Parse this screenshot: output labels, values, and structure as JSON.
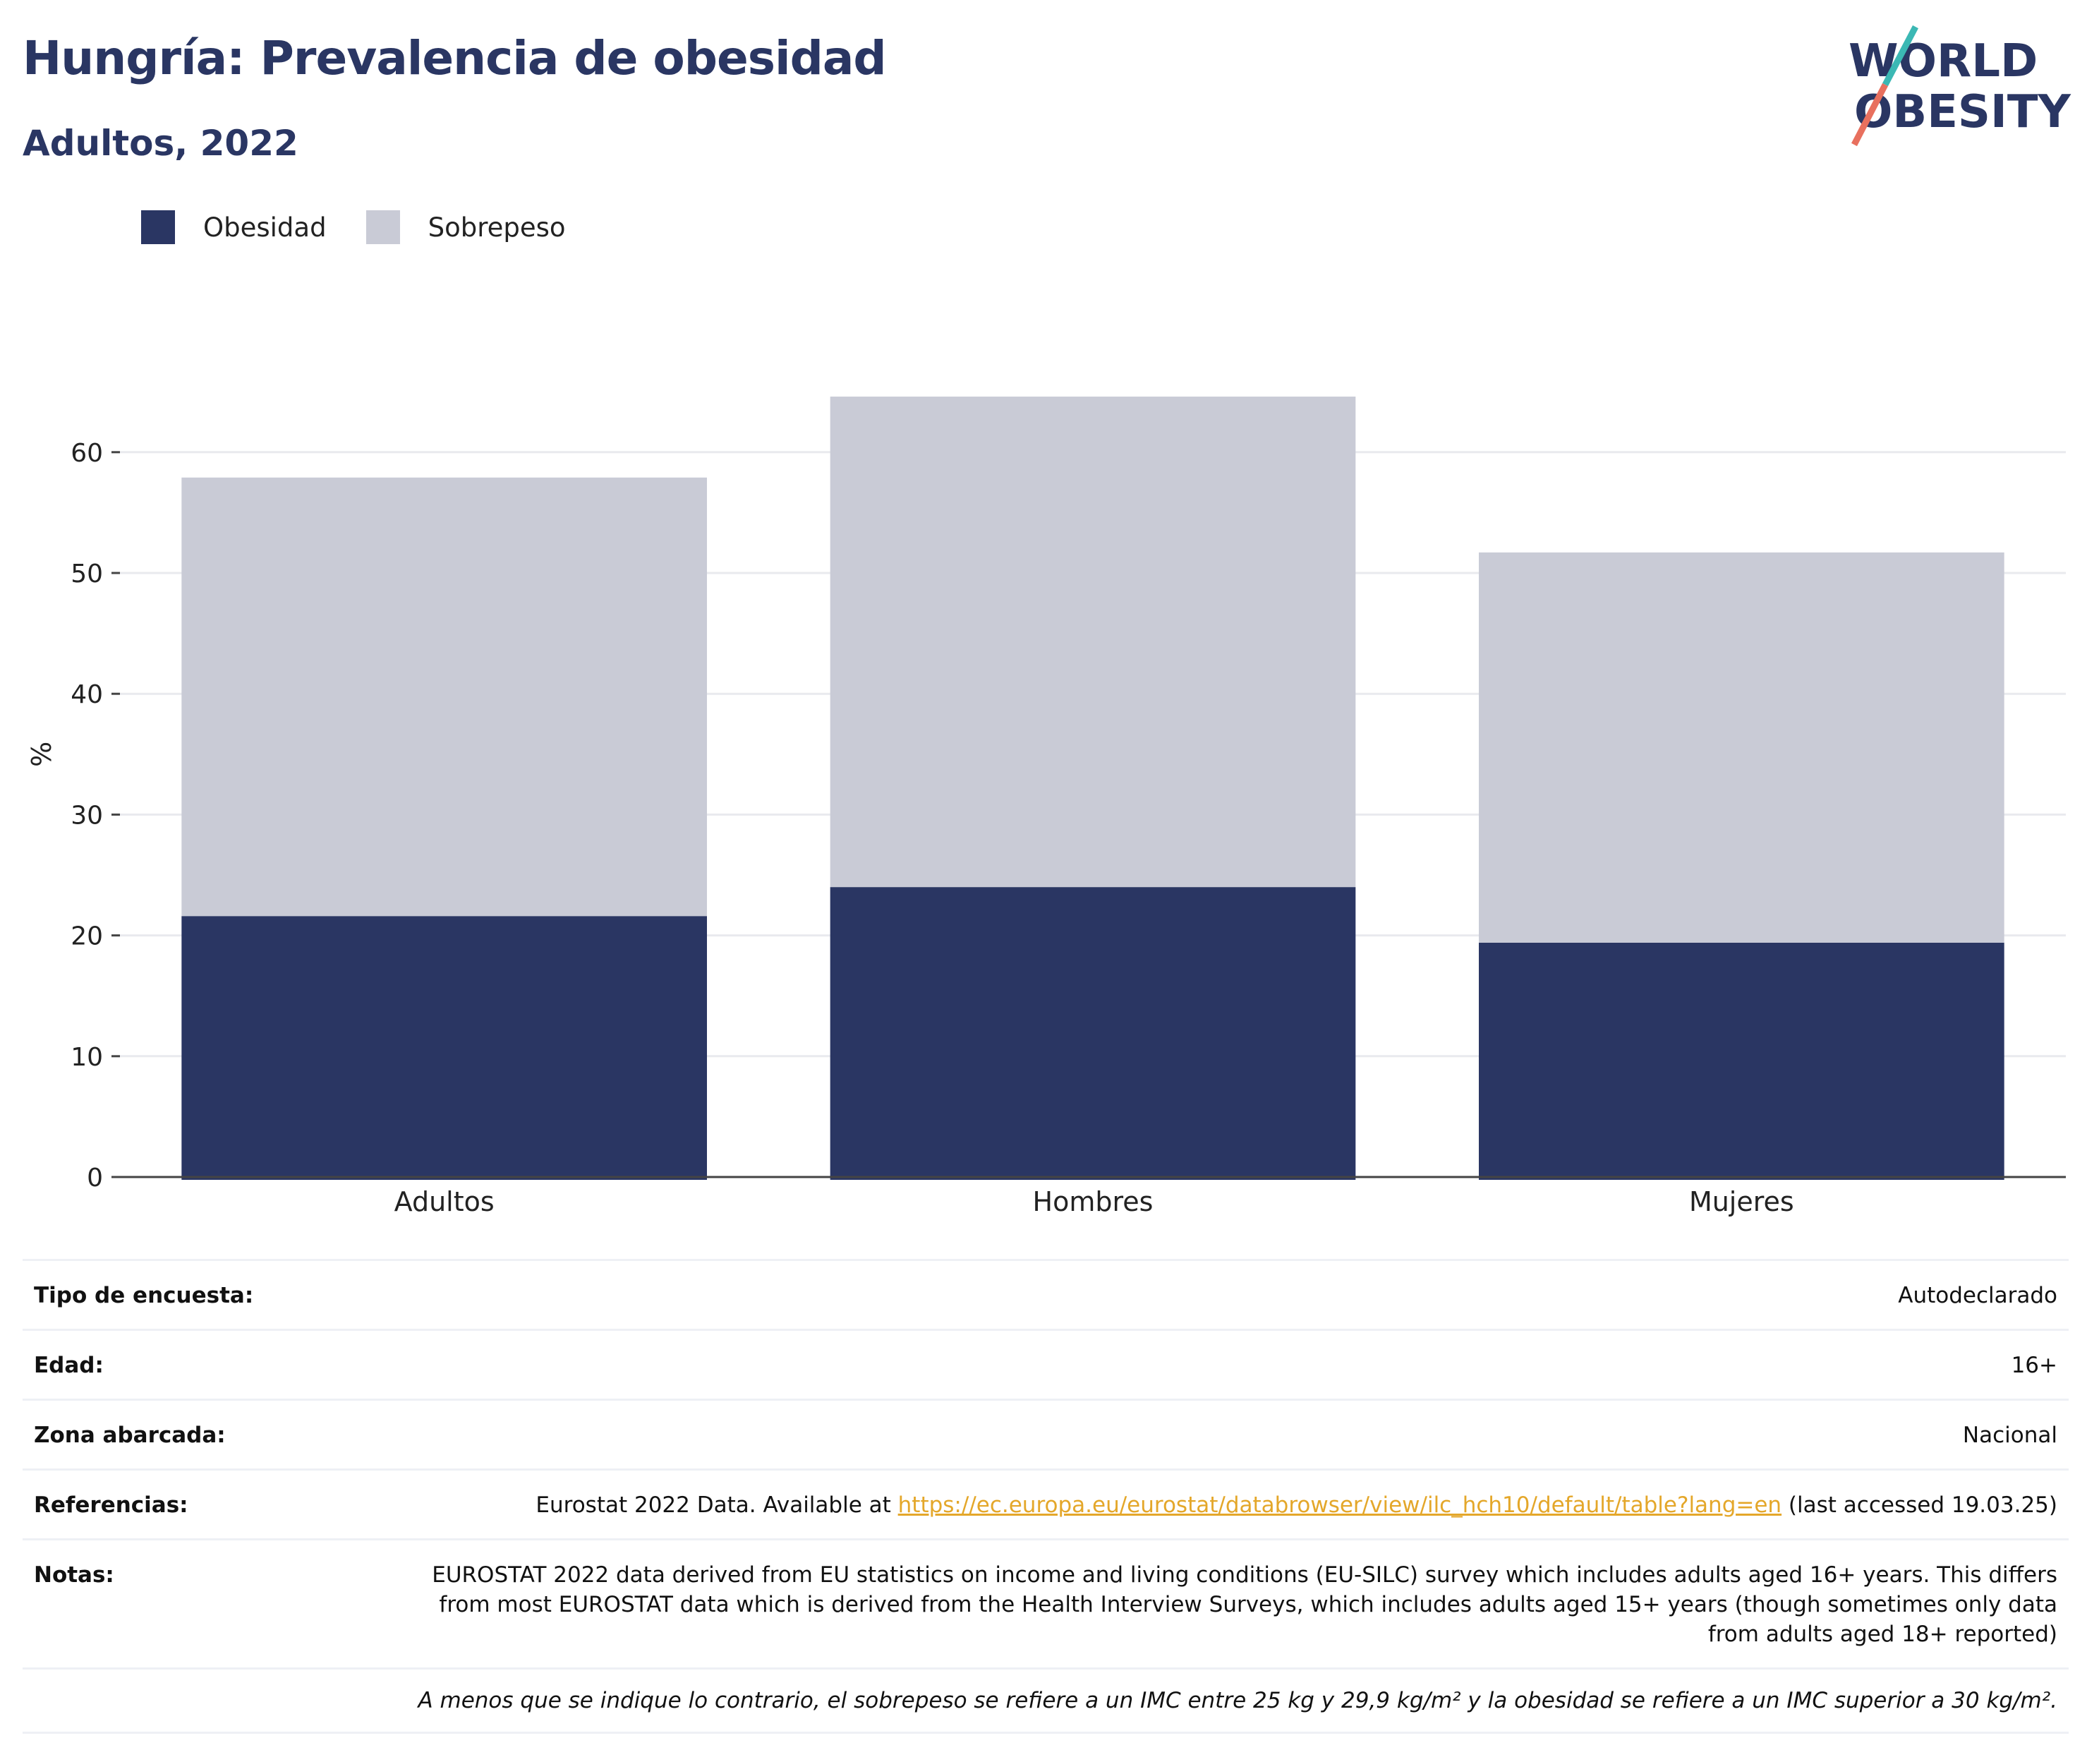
{
  "header": {
    "title": "Hungría: Prevalencia de obesidad",
    "subtitle": "Adultos, 2022"
  },
  "logo": {
    "line1": "WORLD",
    "line2": "OBESITY"
  },
  "colors": {
    "obesity": "#2a3663",
    "overweight": "#c9cbd6",
    "accent_teal": "#3bb8b4",
    "accent_coral": "#e8705e"
  },
  "chart_data": {
    "type": "bar",
    "stacked": true,
    "categories": [
      "Adultos",
      "Hombres",
      "Mujeres"
    ],
    "series": [
      {
        "name": "Obesidad",
        "values": [
          21.6,
          24.0,
          19.4
        ]
      },
      {
        "name": "Sobrepeso",
        "values": [
          36.3,
          40.6,
          32.3
        ]
      }
    ],
    "ylabel": "%",
    "ylim": [
      0,
      70
    ],
    "yticks": [
      0,
      10,
      20,
      30,
      40,
      50,
      60
    ],
    "grid": true,
    "legend_position": "top-left"
  },
  "info": {
    "rows": [
      {
        "key": "Tipo de encuesta:",
        "value": "Autodeclarado"
      },
      {
        "key": "Edad:",
        "value": "16+"
      },
      {
        "key": "Zona abarcada:",
        "value": "Nacional"
      }
    ],
    "references": {
      "key": "Referencias:",
      "prefix": "Eurostat 2022 Data. Available at ",
      "link": "https://ec.europa.eu/eurostat/databrowser/view/ilc_hch10/default/table?lang=en",
      "suffix": " (last accessed 19.03.25)"
    },
    "notes": {
      "key": "Notas:",
      "value": "EUROSTAT 2022 data derived from EU statistics on income and living conditions (EU-SILC) survey which includes adults aged 16+ years. This differs from most EUROSTAT data which is derived from the Health Interview Surveys, which includes adults aged 15+ years (though sometimes only data from adults aged 18+ reported)"
    },
    "footnote": "A menos que se indique lo contrario, el sobrepeso se refiere a un IMC entre 25 kg y 29,9 kg/m² y la obesidad se refiere a un IMC superior a 30 kg/m²."
  }
}
